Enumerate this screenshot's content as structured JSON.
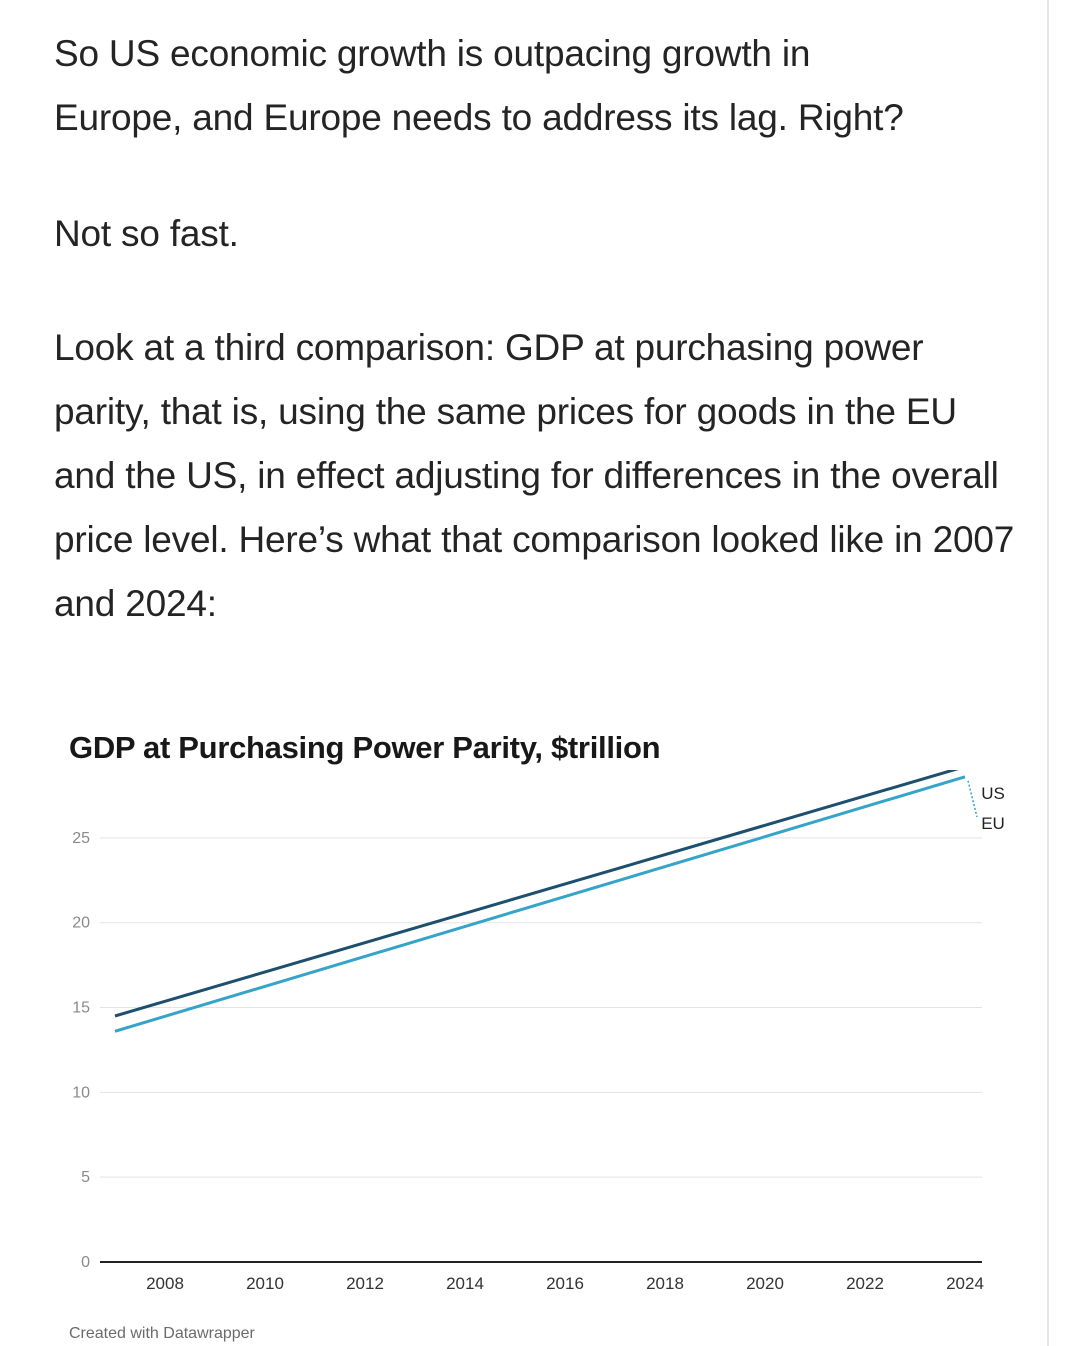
{
  "article": {
    "paragraph_1": "So US economic growth is outpacing growth in Europe, and Europe needs to address its lag. Right?",
    "paragraph_2": "Not so fast.",
    "paragraph_3": "Look at a third comparison: GDP at purchasing power parity, that is, using the same prices for goods in the EU and the US, in effect adjusting for differences in the overall price level. Here’s what that comparison looked like in 2007 and 2024:"
  },
  "chart_data": {
    "type": "line",
    "title": "GDP at Purchasing Power Parity, $trillion",
    "xlabel": "",
    "ylabel": "",
    "x": [
      2007,
      2024
    ],
    "xlim": [
      2007,
      2024
    ],
    "ylim": [
      0,
      29
    ],
    "x_ticks": [
      2008,
      2010,
      2012,
      2014,
      2016,
      2018,
      2020,
      2022,
      2024
    ],
    "y_ticks": [
      0,
      5,
      10,
      15,
      20,
      25
    ],
    "grid": true,
    "legend": "direct labels at line ends",
    "series": [
      {
        "name": "US",
        "values": [
          14.5,
          29.2
        ],
        "color": "#1d4f6e"
      },
      {
        "name": "EU",
        "values": [
          13.6,
          28.6
        ],
        "color": "#36a3c9"
      }
    ]
  },
  "footer": {
    "credit": "Created with Datawrapper"
  }
}
